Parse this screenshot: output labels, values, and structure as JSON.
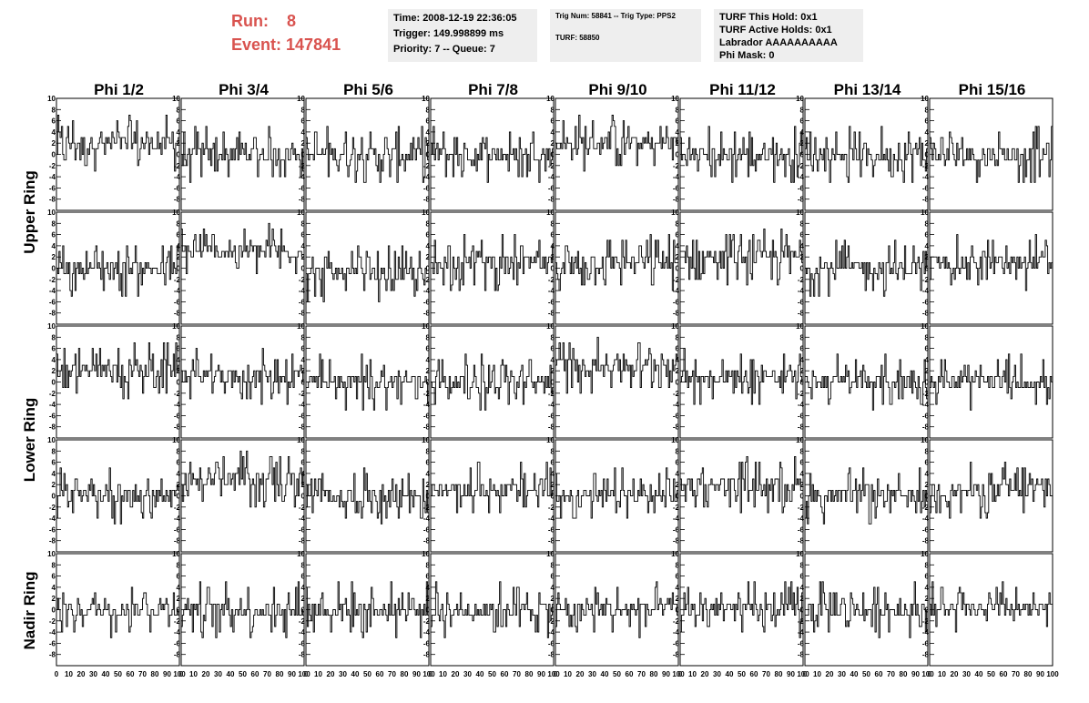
{
  "header": {
    "run_label": "Run:",
    "run_value": "8",
    "event_label": "Event:",
    "event_value": "147841",
    "time": "Time: 2008-12-19 22:36:05",
    "trigger": "Trigger: 149.998899 ms",
    "priority": "Priority: 7 -- Queue: 7",
    "trig_num": "Trig Num: 58841 -- Trig Type: PPS2",
    "turf": "TURF: 58850",
    "turf_this_hold": "TURF This Hold: 0x1",
    "turf_active_holds": "TURF Active Holds: 0x1",
    "labrador": "Labrador AAAAAAAAAA",
    "phi_mask": "Phi Mask: 0"
  },
  "colors": {
    "header_text": "#d9534f",
    "info_bg": "#eeeeee",
    "trace": "#000000"
  },
  "chart_data": {
    "type": "line",
    "columns": [
      "Phi 1/2",
      "Phi 3/4",
      "Phi 5/6",
      "Phi 7/8",
      "Phi 9/10",
      "Phi 11/12",
      "Phi 13/14",
      "Phi 15/16"
    ],
    "rings": [
      "Upper Ring",
      "Lower Ring",
      "Nadir Ring"
    ],
    "rows_per_ring": [
      2,
      2,
      1
    ],
    "xlim": [
      0,
      100
    ],
    "ylim": [
      -10,
      10
    ],
    "x_ticks": [
      "0",
      "10",
      "20",
      "30",
      "40",
      "50",
      "60",
      "70",
      "80",
      "90",
      "100"
    ],
    "y_ticks": [
      "10",
      "8",
      "6",
      "4",
      "2",
      "0",
      "-2",
      "-4",
      "-6",
      "-8"
    ],
    "grid": false,
    "samples": 100,
    "panel_baselines": [
      [
        2,
        0,
        0,
        0,
        2,
        0,
        0,
        0
      ],
      [
        0,
        3,
        -1,
        1,
        1,
        2,
        0,
        1
      ],
      [
        2,
        1,
        0,
        0,
        3,
        1,
        0,
        0
      ],
      [
        0,
        3,
        0,
        1,
        0,
        2,
        0,
        1
      ],
      [
        0,
        0,
        0,
        0,
        0,
        0,
        0,
        0
      ]
    ]
  }
}
